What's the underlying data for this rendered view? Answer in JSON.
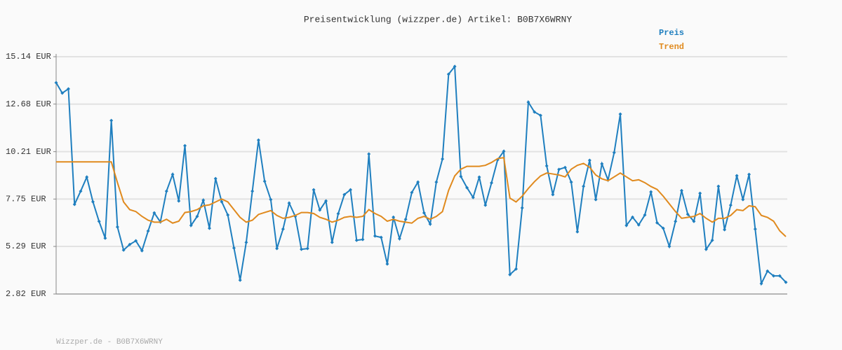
{
  "chart_data": {
    "type": "line",
    "title": "Preisentwicklung (wizzper.de) Artikel: B0B7X6WRNY",
    "footer": "Wizzper.de - B0B7X6WRNY",
    "ylim": [
      2.82,
      15.14
    ],
    "yticks": [
      {
        "value": 2.82,
        "label": "2.82 EUR"
      },
      {
        "value": 5.29,
        "label": "5.29 EUR"
      },
      {
        "value": 7.75,
        "label": "7.75 EUR"
      },
      {
        "value": 10.21,
        "label": "10.21 EUR"
      },
      {
        "value": 12.68,
        "label": "12.68 EUR"
      },
      {
        "value": 15.14,
        "label": "15.14 EUR"
      }
    ],
    "grid": true,
    "legend": "top-right",
    "series": [
      {
        "name": "Preis",
        "color": "#1f7fbf",
        "markers": true,
        "values": [
          13.79,
          13.25,
          13.47,
          7.47,
          8.16,
          8.89,
          7.61,
          6.59,
          5.72,
          11.83,
          6.3,
          5.1,
          5.39,
          5.58,
          5.07,
          6.09,
          7.03,
          6.56,
          8.16,
          9.03,
          7.65,
          10.52,
          6.38,
          6.85,
          7.69,
          6.23,
          8.81,
          7.61,
          6.92,
          5.21,
          3.54,
          5.5,
          8.16,
          10.81,
          8.67,
          7.72,
          5.18,
          6.19,
          7.54,
          6.85,
          5.14,
          5.18,
          8.23,
          7.18,
          7.65,
          5.5,
          6.99,
          7.98,
          8.23,
          5.61,
          5.65,
          10.09,
          5.83,
          5.76,
          4.38,
          6.81,
          5.69,
          6.7,
          8.09,
          8.63,
          7.03,
          6.45,
          8.63,
          9.83,
          14.23,
          14.63,
          8.92,
          8.34,
          7.83,
          8.89,
          7.43,
          8.59,
          9.79,
          10.23,
          3.83,
          4.12,
          7.29,
          12.78,
          12.27,
          12.09,
          9.47,
          7.98,
          9.29,
          9.39,
          8.63,
          6.05,
          8.41,
          9.76,
          7.72,
          9.58,
          8.74,
          10.16,
          12.16,
          6.38,
          6.81,
          6.41,
          6.92,
          8.12,
          6.52,
          6.23,
          5.29,
          6.59,
          8.19,
          6.96,
          6.59,
          8.05,
          5.14,
          5.61,
          8.41,
          6.16,
          7.43,
          8.96,
          7.72,
          9.03,
          6.19,
          3.36,
          4.01,
          3.76,
          3.76,
          3.43
        ]
      },
      {
        "name": "Trend",
        "color": "#e08a1e",
        "markers": false,
        "values": [
          9.68,
          9.68,
          9.68,
          9.68,
          9.68,
          9.68,
          9.68,
          9.68,
          9.68,
          9.68,
          8.6,
          7.6,
          7.2,
          7.1,
          6.85,
          6.65,
          6.55,
          6.55,
          6.7,
          6.5,
          6.6,
          7.05,
          7.1,
          7.2,
          7.4,
          7.45,
          7.6,
          7.75,
          7.6,
          7.2,
          6.8,
          6.55,
          6.65,
          6.95,
          7.05,
          7.15,
          6.9,
          6.75,
          6.8,
          6.9,
          7.05,
          7.05,
          7.0,
          6.8,
          6.7,
          6.55,
          6.65,
          6.8,
          6.85,
          6.8,
          6.85,
          7.2,
          7.0,
          6.85,
          6.6,
          6.7,
          6.6,
          6.55,
          6.5,
          6.75,
          6.85,
          6.7,
          6.85,
          7.1,
          8.2,
          8.95,
          9.3,
          9.45,
          9.45,
          9.45,
          9.5,
          9.65,
          9.85,
          9.9,
          7.8,
          7.6,
          7.9,
          8.3,
          8.65,
          8.95,
          9.1,
          9.05,
          9.0,
          8.9,
          9.3,
          9.5,
          9.6,
          9.4,
          9.0,
          8.8,
          8.7,
          8.9,
          9.1,
          8.9,
          8.7,
          8.75,
          8.6,
          8.4,
          8.25,
          7.9,
          7.5,
          7.1,
          6.75,
          6.8,
          6.85,
          7.0,
          6.75,
          6.55,
          6.75,
          6.75,
          6.9,
          7.2,
          7.15,
          7.4,
          7.35,
          6.9,
          6.8,
          6.6,
          6.1,
          5.8
        ]
      }
    ]
  }
}
